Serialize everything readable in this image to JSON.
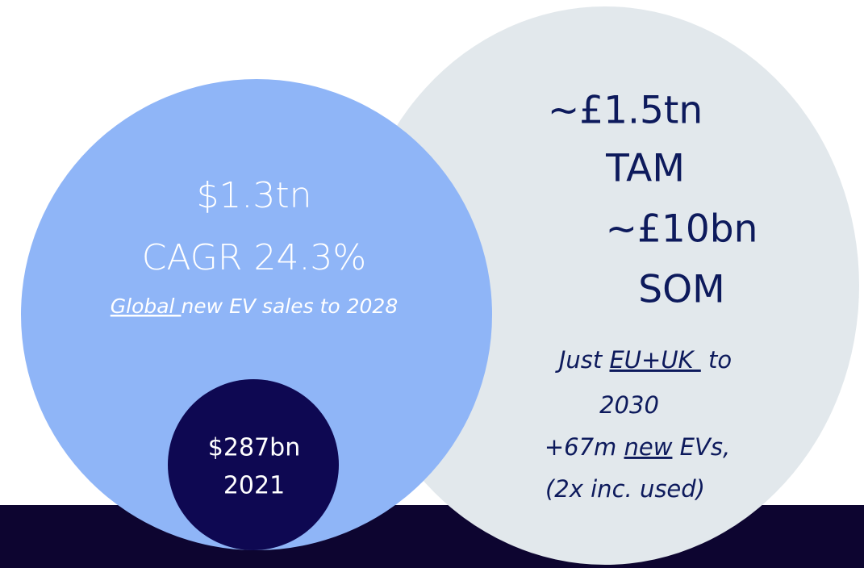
{
  "market_circle": {
    "value": "$1.3tn",
    "growth": "CAGR 24.3%",
    "note_underlined": "Global ",
    "note_rest": "new EV sales to 2028"
  },
  "current_circle": {
    "value": "$287bn",
    "year": "2021"
  },
  "addressable_circle": {
    "tam_value": "~£1.5tn",
    "tam_label": "TAM",
    "som_value": "~£10bn",
    "som_label": "SOM",
    "note_line1_start": "Just ",
    "note_line1_underlined": "EU+UK ",
    "note_line1_end": " to",
    "note_line2": "2030",
    "note_line3_start": "+67m ",
    "note_line3_underlined": "new",
    "note_line3_end": " EVs,",
    "note_line4": "(2x inc. used)"
  }
}
